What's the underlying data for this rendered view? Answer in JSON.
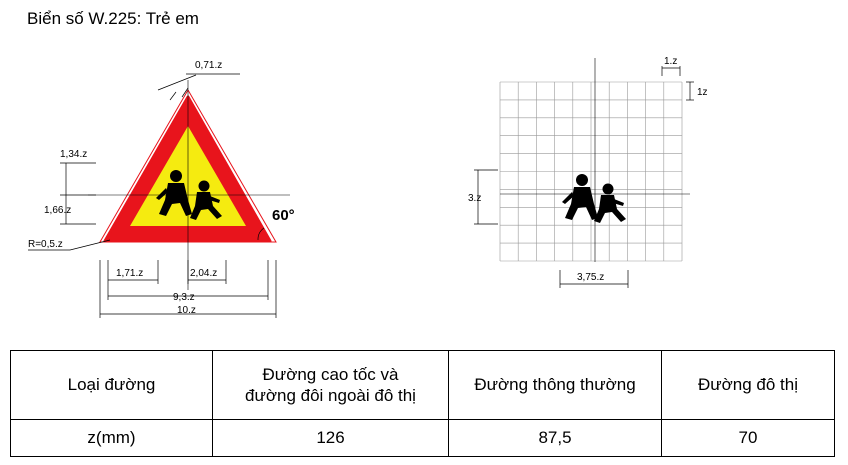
{
  "title": "Biển số W.225: Trẻ em",
  "sign_dims": {
    "top": "0,71.z",
    "d1": "1,34.z",
    "d2": "1,66.z",
    "radius": "R=0,5.z",
    "angle": "60°",
    "w1": "1,71.z",
    "w2": "2,04.z",
    "w3": "9,3.z",
    "w4": "10.z"
  },
  "grid_dims": {
    "cell_w": "1.z",
    "cell_h": "1z",
    "height": "3.z",
    "width": "3,75.z"
  },
  "table": {
    "headers": [
      "Loại đường",
      "Đường cao tốc và\nđường đôi ngoài đô thị",
      "Đường thông thường",
      "Đường đô thị"
    ],
    "row_label": "z(mm)",
    "values": [
      "126",
      "87,5",
      "70"
    ]
  },
  "colors": {
    "border": "#e8141c",
    "fill": "#f5eb10",
    "figure": "#000000"
  }
}
